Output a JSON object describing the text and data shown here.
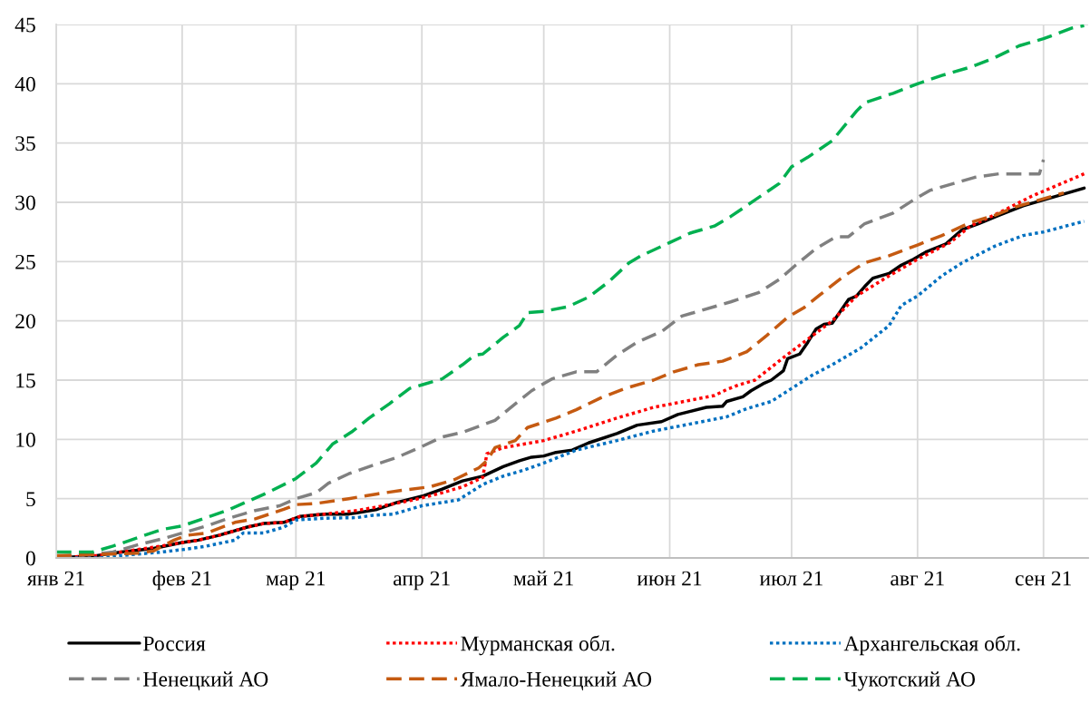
{
  "chart_data": {
    "type": "line",
    "xlim": [
      "2021-01-01",
      "2021-09-12"
    ],
    "xticks": [
      {
        "value": "2021-01-01",
        "label": "янв 21"
      },
      {
        "value": "2021-02-01",
        "label": "фев 21"
      },
      {
        "value": "2021-03-01",
        "label": "мар 21"
      },
      {
        "value": "2021-04-01",
        "label": "апр 21"
      },
      {
        "value": "2021-05-01",
        "label": "май 21"
      },
      {
        "value": "2021-06-01",
        "label": "июн 21"
      },
      {
        "value": "2021-07-01",
        "label": "июл 21"
      },
      {
        "value": "2021-08-01",
        "label": "авг 21"
      },
      {
        "value": "2021-09-01",
        "label": "сен 21"
      }
    ],
    "ylim": [
      0,
      45
    ],
    "yticks": [
      0,
      5,
      10,
      15,
      20,
      25,
      30,
      35,
      40,
      45
    ],
    "grid": true,
    "legend": "bottom",
    "series": [
      {
        "name": "Россия",
        "color": "#000000",
        "line_style": "solid",
        "x": [
          "2021-01-01",
          "2021-01-11",
          "2021-01-17",
          "2021-01-25",
          "2021-02-01",
          "2021-02-05",
          "2021-02-10",
          "2021-02-17",
          "2021-02-21",
          "2021-02-26",
          "2021-03-02",
          "2021-03-08",
          "2021-03-14",
          "2021-03-16",
          "2021-03-21",
          "2021-03-26",
          "2021-04-01",
          "2021-04-06",
          "2021-04-11",
          "2021-04-16",
          "2021-04-21",
          "2021-04-25",
          "2021-04-28",
          "2021-05-01",
          "2021-05-04",
          "2021-05-08",
          "2021-05-12",
          "2021-05-19",
          "2021-05-24",
          "2021-05-30",
          "2021-06-03",
          "2021-06-10",
          "2021-06-14",
          "2021-06-15",
          "2021-06-19",
          "2021-06-21",
          "2021-06-24",
          "2021-06-26",
          "2021-06-29",
          "2021-06-30",
          "2021-07-03",
          "2021-07-05",
          "2021-07-07",
          "2021-07-09",
          "2021-07-11",
          "2021-07-13",
          "2021-07-15",
          "2021-07-17",
          "2021-07-19",
          "2021-07-21",
          "2021-07-25",
          "2021-07-28",
          "2021-07-31",
          "2021-08-03",
          "2021-08-08",
          "2021-08-12",
          "2021-08-16",
          "2021-08-21",
          "2021-08-27",
          "2021-09-01",
          "2021-09-06",
          "2021-09-11"
        ],
        "values": [
          0.0,
          0.2,
          0.5,
          0.8,
          1.3,
          1.5,
          1.9,
          2.6,
          2.9,
          3.0,
          3.5,
          3.7,
          3.7,
          3.8,
          4.1,
          4.7,
          5.2,
          5.8,
          6.5,
          6.9,
          7.7,
          8.2,
          8.5,
          8.6,
          8.9,
          9.1,
          9.7,
          10.5,
          11.2,
          11.5,
          12.1,
          12.7,
          12.8,
          13.2,
          13.6,
          14.1,
          14.7,
          15.0,
          15.8,
          16.8,
          17.2,
          18.2,
          19.3,
          19.7,
          19.8,
          20.8,
          21.8,
          22.1,
          22.9,
          23.6,
          24.0,
          24.7,
          25.2,
          25.8,
          26.5,
          27.7,
          28.2,
          28.9,
          29.7,
          30.2,
          30.7,
          31.2
        ]
      },
      {
        "name": "Мурманская обл.",
        "color": "#ff0000",
        "line_style": "dotted",
        "x": [
          "2021-01-01",
          "2021-01-11",
          "2021-01-17",
          "2021-01-25",
          "2021-02-01",
          "2021-02-05",
          "2021-02-10",
          "2021-02-17",
          "2021-02-21",
          "2021-02-26",
          "2021-03-02",
          "2021-03-08",
          "2021-03-16",
          "2021-03-21",
          "2021-03-30",
          "2021-04-06",
          "2021-04-11",
          "2021-04-16",
          "2021-04-17",
          "2021-04-21",
          "2021-05-01",
          "2021-05-09",
          "2021-05-19",
          "2021-05-28",
          "2021-06-06",
          "2021-06-12",
          "2021-06-15",
          "2021-06-18",
          "2021-06-22",
          "2021-06-29",
          "2021-07-04",
          "2021-07-11",
          "2021-07-17",
          "2021-07-25",
          "2021-08-01",
          "2021-08-09",
          "2021-08-14",
          "2021-08-21",
          "2021-08-29",
          "2021-09-11"
        ],
        "values": [
          0.0,
          0.2,
          0.5,
          0.9,
          1.3,
          1.5,
          1.9,
          2.6,
          2.9,
          3.0,
          3.5,
          3.7,
          4.0,
          4.3,
          4.9,
          5.5,
          6.0,
          6.8,
          8.8,
          9.3,
          9.9,
          10.7,
          11.8,
          12.7,
          13.3,
          13.7,
          14.2,
          14.6,
          15.0,
          16.9,
          18.2,
          20.0,
          22.1,
          23.8,
          25.2,
          26.6,
          28.0,
          29.1,
          30.5,
          32.4
        ]
      },
      {
        "name": "Архангельская обл.",
        "color": "#0070c0",
        "line_style": "dotted",
        "x": [
          "2021-01-01",
          "2021-01-12",
          "2021-01-17",
          "2021-01-27",
          "2021-02-01",
          "2021-02-07",
          "2021-02-14",
          "2021-02-16",
          "2021-02-21",
          "2021-02-26",
          "2021-03-01",
          "2021-03-08",
          "2021-03-16",
          "2021-03-20",
          "2021-03-25",
          "2021-04-01",
          "2021-04-10",
          "2021-04-16",
          "2021-04-21",
          "2021-04-26",
          "2021-05-01",
          "2021-05-09",
          "2021-05-19",
          "2021-05-28",
          "2021-06-06",
          "2021-06-15",
          "2021-06-20",
          "2021-06-26",
          "2021-07-01",
          "2021-07-06",
          "2021-07-11",
          "2021-07-18",
          "2021-07-25",
          "2021-07-28",
          "2021-08-01",
          "2021-08-07",
          "2021-08-12",
          "2021-08-20",
          "2021-08-27",
          "2021-09-01",
          "2021-09-11"
        ],
        "values": [
          0.0,
          0.0,
          0.2,
          0.5,
          0.7,
          1.0,
          1.5,
          2.1,
          2.1,
          2.6,
          3.2,
          3.35,
          3.4,
          3.6,
          3.7,
          4.4,
          4.9,
          6.2,
          6.9,
          7.4,
          8.0,
          9.1,
          9.9,
          10.7,
          11.3,
          11.9,
          12.6,
          13.2,
          14.3,
          15.4,
          16.3,
          17.7,
          19.6,
          21.3,
          22.1,
          23.8,
          24.9,
          26.3,
          27.2,
          27.5,
          28.4
        ]
      },
      {
        "name": "Ненецкий АО",
        "color": "#808080",
        "line_style": "dashed",
        "x": [
          "2021-01-01",
          "2021-01-10",
          "2021-01-15",
          "2021-01-21",
          "2021-01-27",
          "2021-02-01",
          "2021-02-07",
          "2021-02-12",
          "2021-02-19",
          "2021-02-25",
          "2021-03-01",
          "2021-03-06",
          "2021-03-09",
          "2021-03-14",
          "2021-03-19",
          "2021-03-26",
          "2021-04-01",
          "2021-04-06",
          "2021-04-11",
          "2021-04-19",
          "2021-04-24",
          "2021-04-28",
          "2021-05-03",
          "2021-05-09",
          "2021-05-14",
          "2021-05-19",
          "2021-05-24",
          "2021-05-30",
          "2021-06-04",
          "2021-06-12",
          "2021-06-16",
          "2021-06-23",
          "2021-06-28",
          "2021-07-02",
          "2021-07-07",
          "2021-07-12",
          "2021-07-15",
          "2021-07-19",
          "2021-07-26",
          "2021-07-31",
          "2021-08-04",
          "2021-08-10",
          "2021-08-15",
          "2021-08-21",
          "2021-08-31",
          "2021-09-01"
        ],
        "values": [
          0.1,
          0.3,
          0.5,
          1.1,
          1.6,
          2.1,
          2.7,
          3.3,
          4.0,
          4.4,
          5.0,
          5.5,
          6.3,
          7.1,
          7.7,
          8.5,
          9.4,
          10.2,
          10.6,
          11.6,
          13.0,
          14.1,
          15.1,
          15.7,
          15.7,
          17.1,
          18.2,
          19.1,
          20.4,
          21.2,
          21.6,
          22.4,
          23.5,
          24.7,
          26.1,
          27.1,
          27.1,
          28.2,
          29.1,
          30.2,
          31.0,
          31.6,
          32.1,
          32.4,
          32.4,
          33.6
        ]
      },
      {
        "name": "Ямало-Ненецкий АО",
        "color": "#c55a11",
        "line_style": "dashed",
        "x": [
          "2021-01-01",
          "2021-01-12",
          "2021-01-21",
          "2021-01-25",
          "2021-01-30",
          "2021-02-02",
          "2021-02-07",
          "2021-02-14",
          "2021-02-19",
          "2021-02-26",
          "2021-03-01",
          "2021-03-06",
          "2021-03-14",
          "2021-03-21",
          "2021-03-27",
          "2021-04-03",
          "2021-04-09",
          "2021-04-15",
          "2021-04-17",
          "2021-04-19",
          "2021-04-24",
          "2021-04-27",
          "2021-05-04",
          "2021-05-09",
          "2021-05-15",
          "2021-05-21",
          "2021-05-28",
          "2021-06-02",
          "2021-06-08",
          "2021-06-14",
          "2021-06-20",
          "2021-06-25",
          "2021-06-30",
          "2021-07-04",
          "2021-07-08",
          "2021-07-14",
          "2021-07-19",
          "2021-07-25",
          "2021-08-01",
          "2021-08-07",
          "2021-08-14",
          "2021-08-20",
          "2021-08-25",
          "2021-08-31",
          "2021-09-06"
        ],
        "values": [
          0.2,
          0.3,
          0.4,
          0.6,
          1.5,
          1.9,
          2.1,
          3.0,
          3.3,
          4.1,
          4.5,
          4.6,
          5.0,
          5.4,
          5.7,
          6.0,
          6.6,
          7.6,
          8.2,
          9.3,
          9.9,
          11.0,
          11.8,
          12.5,
          13.5,
          14.3,
          15.0,
          15.7,
          16.3,
          16.6,
          17.4,
          18.8,
          20.3,
          21.1,
          22.2,
          23.8,
          24.9,
          25.5,
          26.4,
          27.2,
          28.3,
          28.9,
          29.6,
          30.2,
          30.8
        ]
      },
      {
        "name": "Чукотский АО",
        "color": "#00b050",
        "line_style": "dashed",
        "x": [
          "2021-01-01",
          "2021-01-10",
          "2021-01-15",
          "2021-01-21",
          "2021-01-27",
          "2021-02-01",
          "2021-02-12",
          "2021-02-22",
          "2021-03-01",
          "2021-03-06",
          "2021-03-10",
          "2021-03-15",
          "2021-03-19",
          "2021-03-24",
          "2021-03-29",
          "2021-04-01",
          "2021-04-06",
          "2021-04-11",
          "2021-04-14",
          "2021-04-16",
          "2021-04-21",
          "2021-04-25",
          "2021-04-27",
          "2021-05-01",
          "2021-05-07",
          "2021-05-12",
          "2021-05-17",
          "2021-05-22",
          "2021-05-25",
          "2021-06-01",
          "2021-06-06",
          "2021-06-12",
          "2021-06-16",
          "2021-06-22",
          "2021-06-28",
          "2021-07-01",
          "2021-07-05",
          "2021-07-11",
          "2021-07-17",
          "2021-07-19",
          "2021-07-26",
          "2021-08-01",
          "2021-08-07",
          "2021-08-14",
          "2021-08-20",
          "2021-08-26",
          "2021-09-01",
          "2021-09-08",
          "2021-09-11"
        ],
        "values": [
          0.5,
          0.5,
          1.0,
          1.7,
          2.4,
          2.7,
          4.0,
          5.5,
          6.7,
          8.0,
          9.6,
          10.7,
          11.8,
          13.0,
          14.3,
          14.6,
          15.1,
          16.3,
          17.1,
          17.2,
          18.6,
          19.6,
          20.7,
          20.8,
          21.2,
          22.0,
          23.3,
          24.9,
          25.5,
          26.6,
          27.4,
          28.0,
          28.8,
          30.2,
          31.6,
          33.0,
          33.8,
          35.2,
          37.7,
          38.4,
          39.2,
          40.0,
          40.7,
          41.4,
          42.2,
          43.2,
          43.8,
          44.7,
          44.9
        ]
      }
    ]
  }
}
